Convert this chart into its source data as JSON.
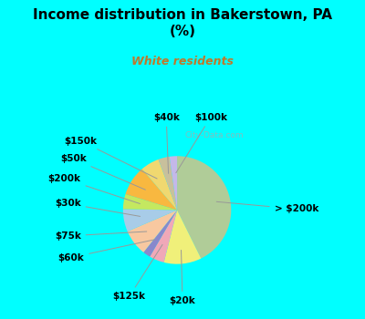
{
  "title": "Income distribution in Bakerstown, PA\n(%)",
  "subtitle": "White residents",
  "title_color": "#000000",
  "subtitle_color": "#c0782a",
  "background_outer": "#00ffff",
  "background_inner_top": "#d8f0e8",
  "background_inner_bottom": "#e8f8f0",
  "labels": [
    "> $200k",
    "$20k",
    "$125k",
    "$60k",
    "$75k",
    "$30k",
    "$200k",
    "$50k",
    "$150k",
    "$40k",
    "$100k"
  ],
  "values": [
    38,
    10,
    4,
    2,
    7,
    6,
    4,
    8,
    5,
    3,
    2
  ],
  "colors": [
    "#b0cc98",
    "#f0f07a",
    "#f0a8b8",
    "#8888cc",
    "#f8c8a0",
    "#a8cce8",
    "#c4e860",
    "#f8b840",
    "#f0d870",
    "#c8c09c",
    "#c4b8e8"
  ],
  "startangle": 90,
  "label_fontsize": 7.5,
  "watermark": "City-Data.com"
}
